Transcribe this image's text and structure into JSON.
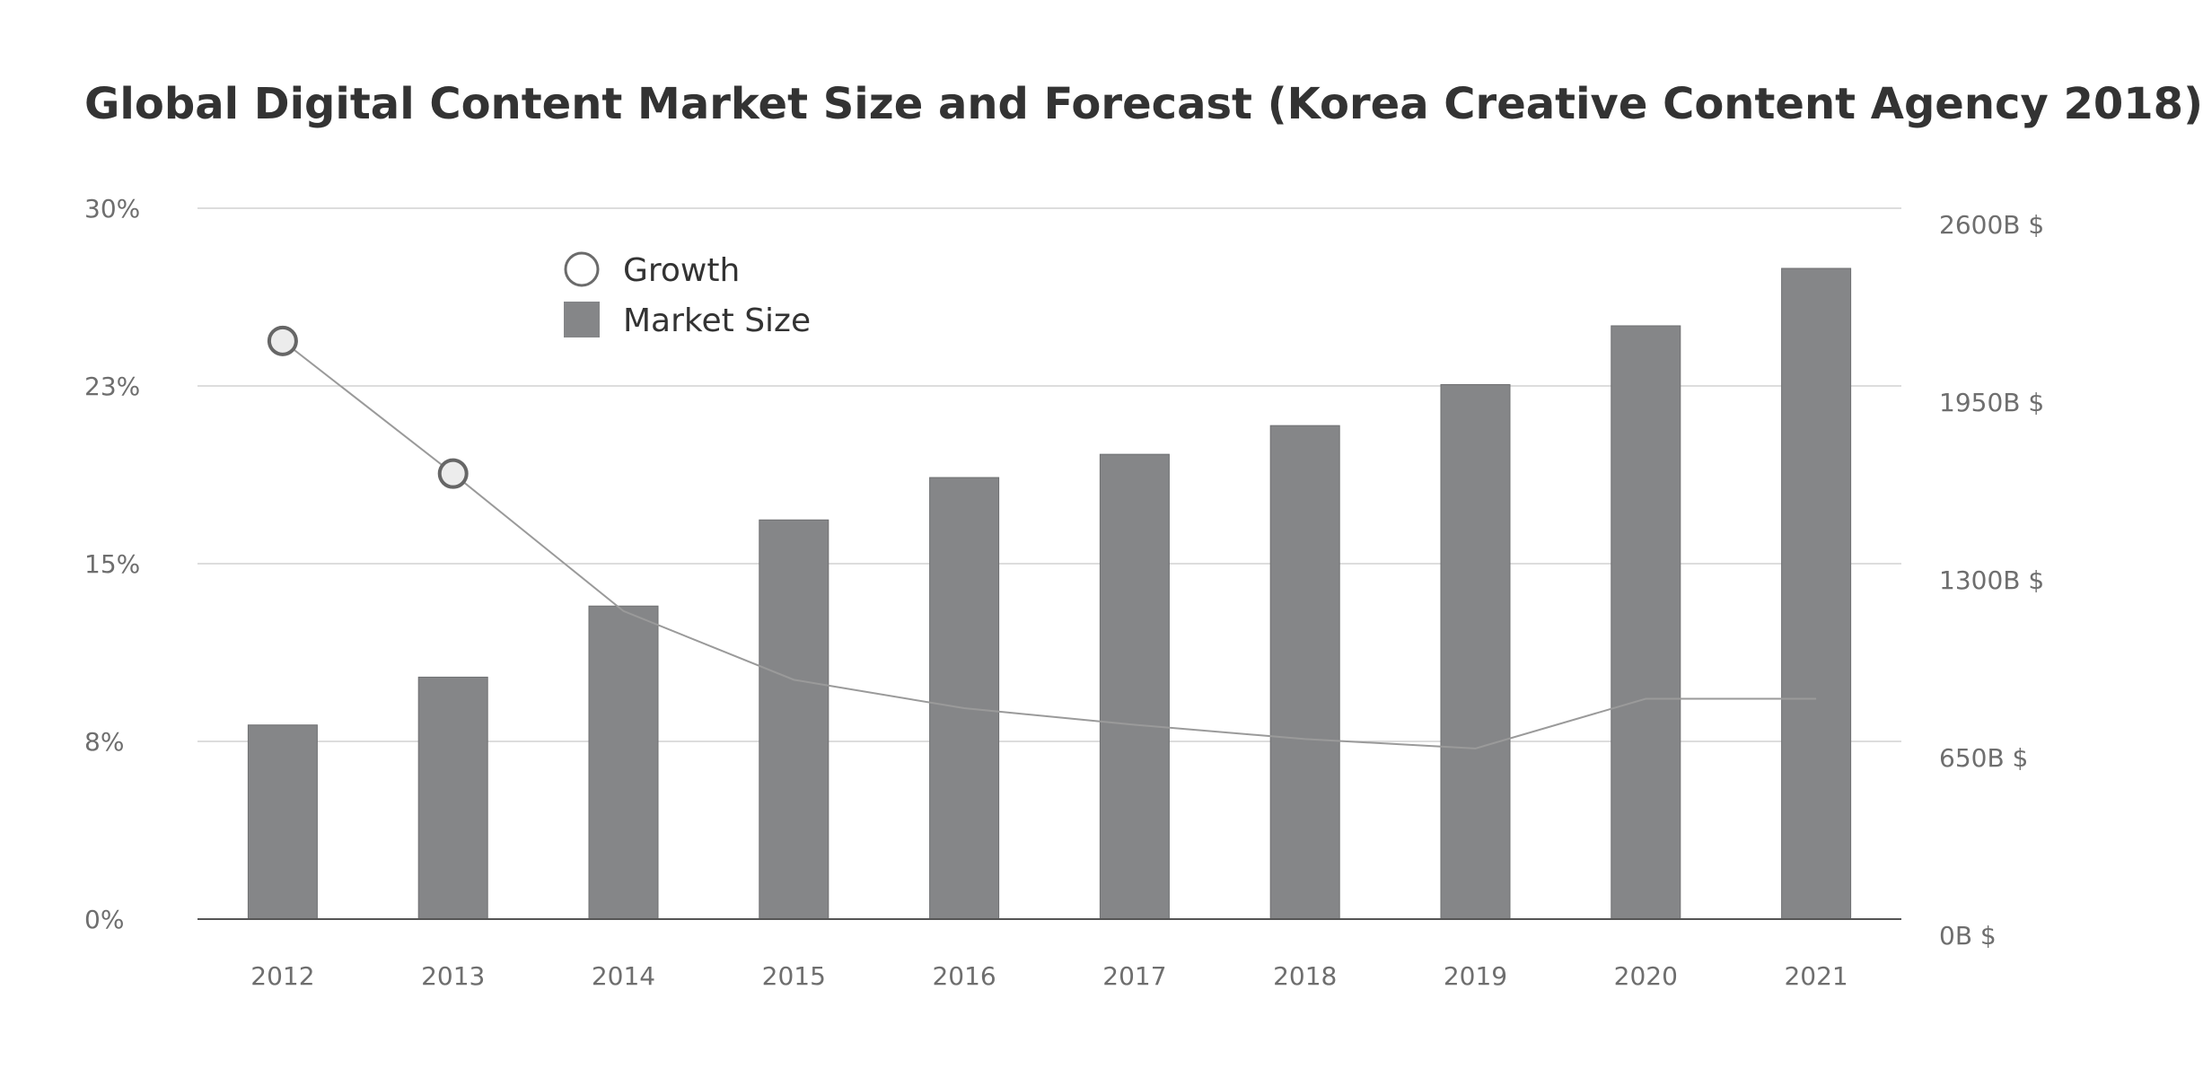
{
  "chart_data": {
    "type": "bar",
    "title": "Global Digital Content Market Size and Forecast (Korea Creative Content Agency 2018)",
    "categories": [
      "2012",
      "2013",
      "2014",
      "2015",
      "2016",
      "2017",
      "2018",
      "2019",
      "2020",
      "2021"
    ],
    "series": [
      {
        "name": "Market Size",
        "type": "bar",
        "axis": "right",
        "values": [
          710,
          885,
          1145,
          1460,
          1615,
          1700,
          1805,
          1955,
          2170,
          2380
        ]
      },
      {
        "name": "Growth",
        "type": "line",
        "axis": "left",
        "values": [
          24.4,
          18.8,
          13.0,
          10.1,
          8.9,
          8.2,
          7.6,
          7.2,
          9.3,
          9.3
        ],
        "markers_shown_for": [
          "2012",
          "2013"
        ]
      }
    ],
    "left_axis": {
      "ticks": [
        "0%",
        "8%",
        "15%",
        "23%",
        "30%"
      ],
      "range": [
        0,
        30
      ]
    },
    "right_axis": {
      "ticks": [
        "0B $",
        "650B $",
        "1300B $",
        "1950B $",
        "2600B $"
      ],
      "range": [
        0,
        2600
      ]
    },
    "grid": true,
    "legend": {
      "position": "top-left",
      "entries": [
        "Growth",
        "Market Size"
      ]
    },
    "colors": {
      "bar": "#858688",
      "line": "#9a9a9a",
      "marker_fill": "#ececec",
      "marker_stroke": "#666666",
      "grid": "#d2d2d2",
      "axis": "#555555"
    }
  }
}
